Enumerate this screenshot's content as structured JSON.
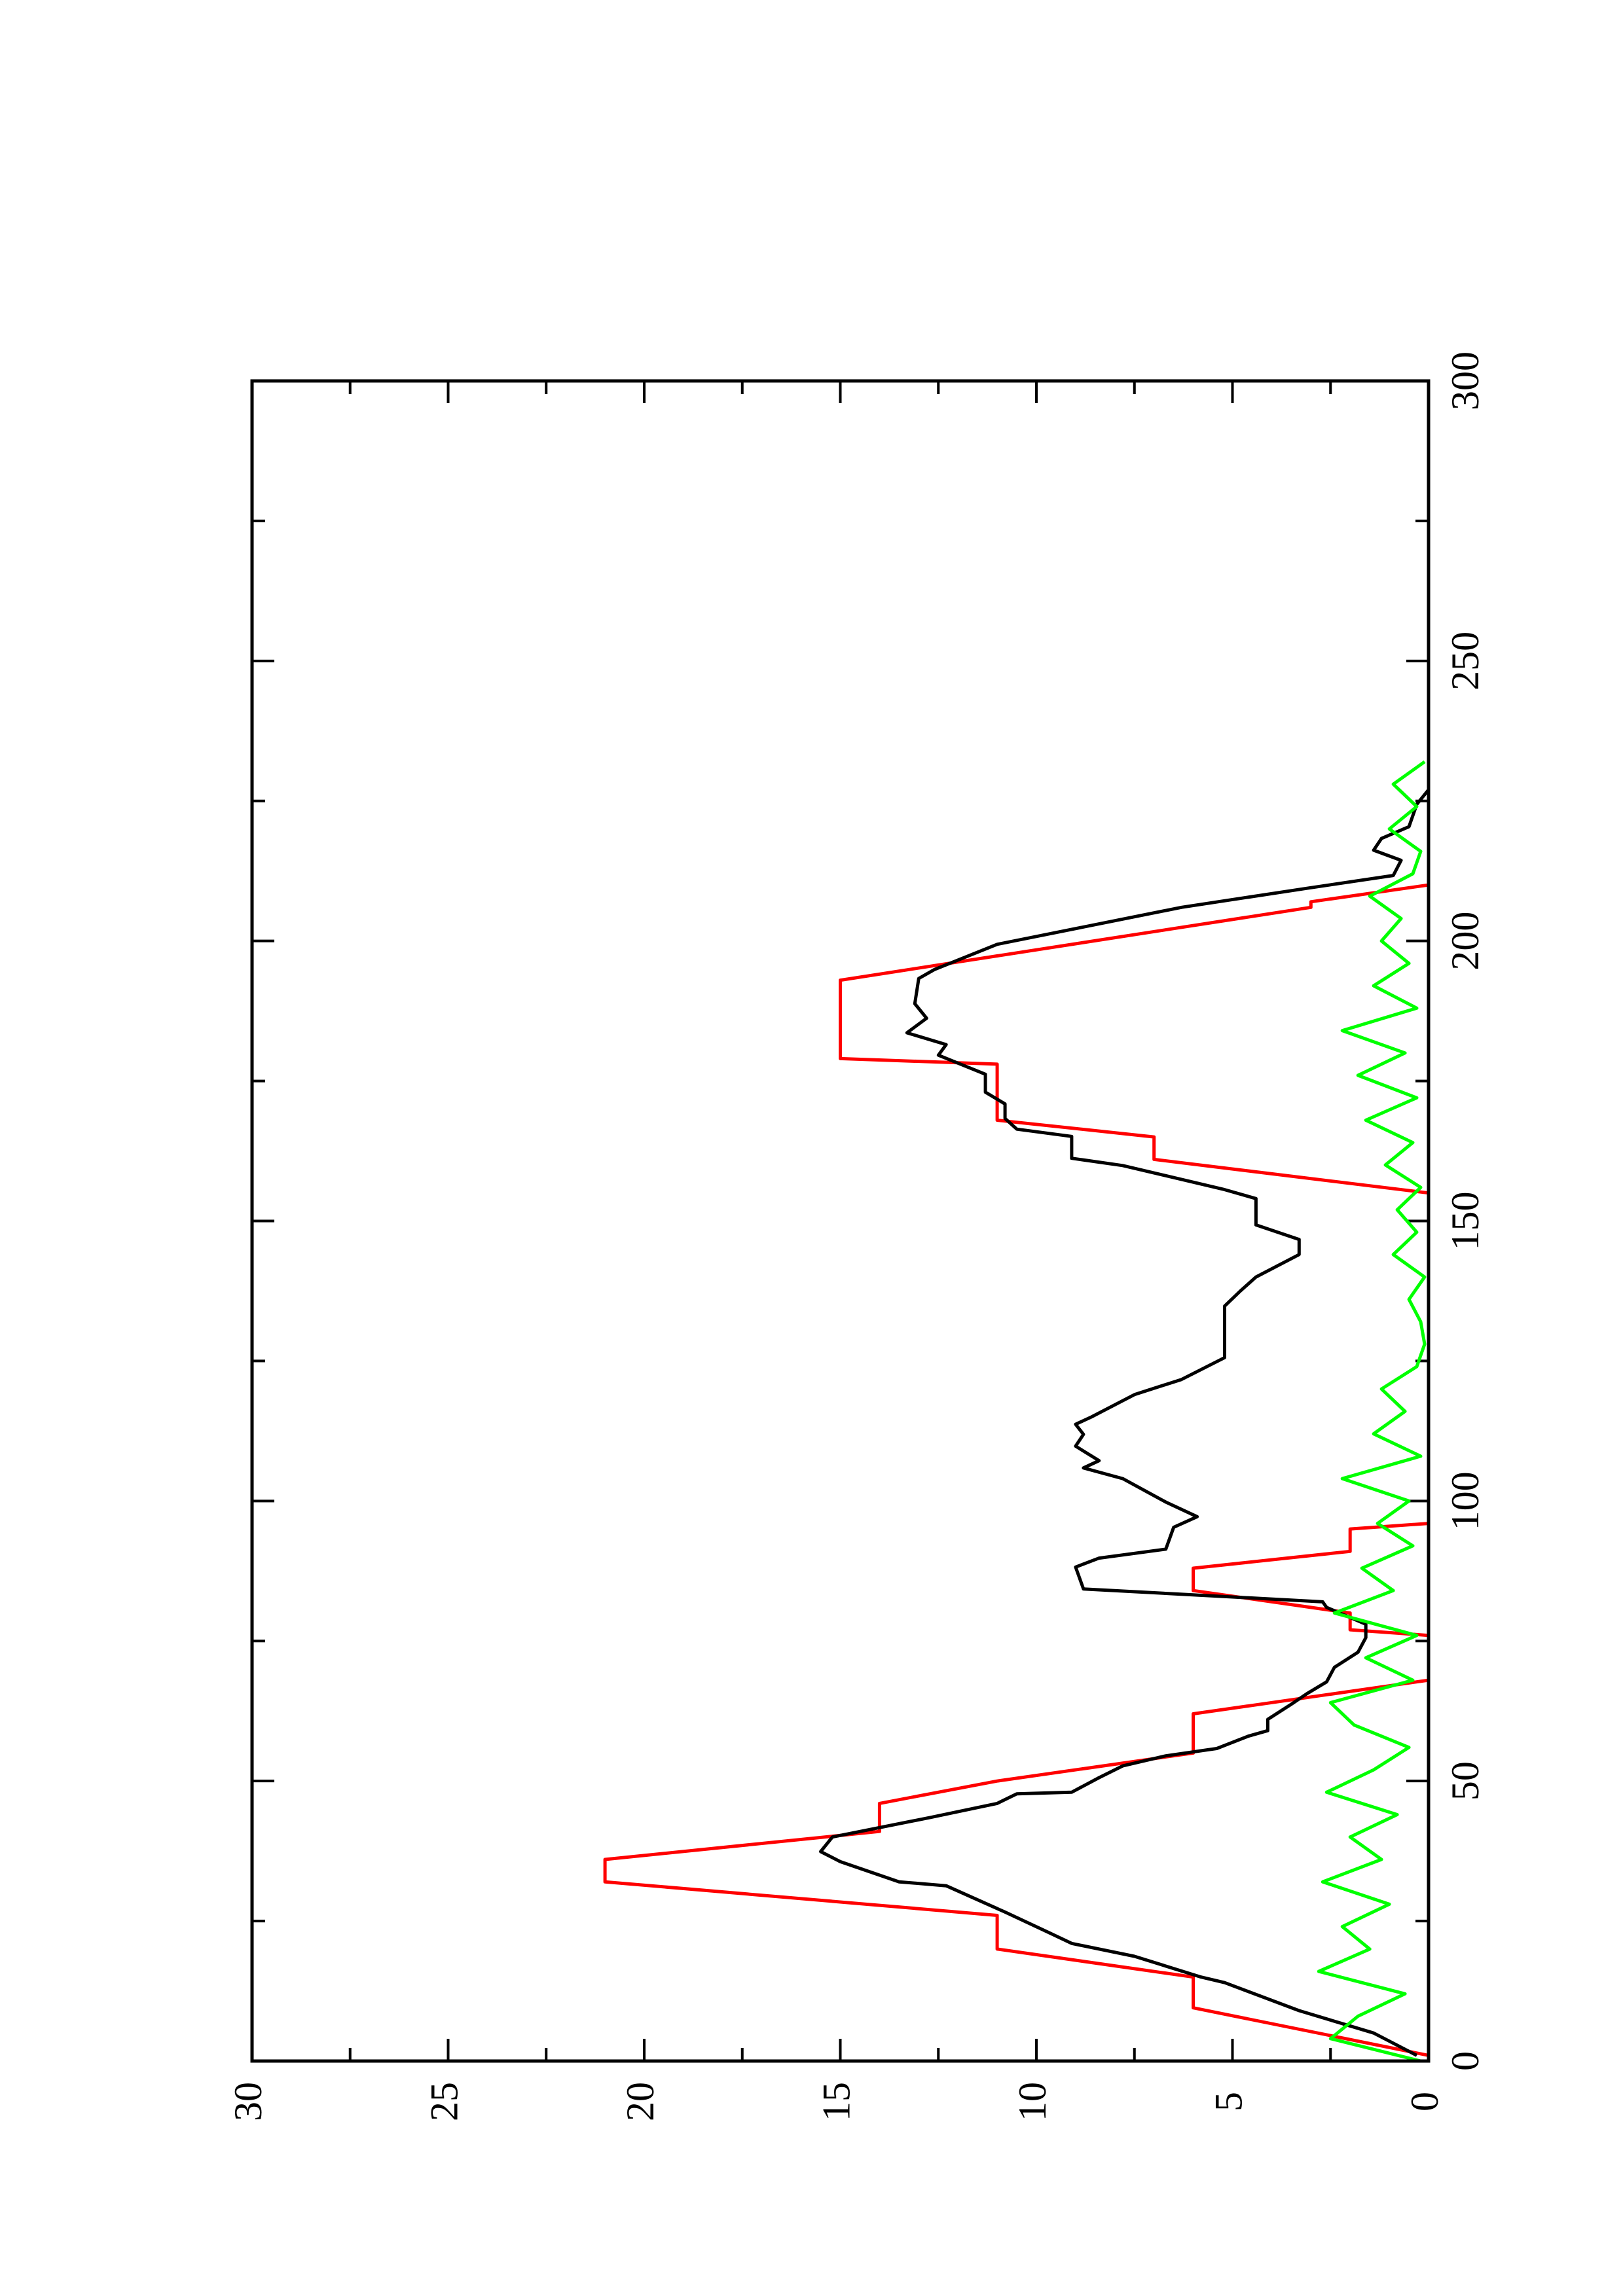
{
  "chart_data": {
    "type": "line",
    "orientation": "rotated",
    "xlim": [
      0,
      300
    ],
    "xticks": [
      0,
      50,
      100,
      150,
      200,
      250,
      300
    ],
    "xticks_minor": [
      25,
      75,
      125,
      175,
      225,
      275
    ],
    "ylim": [
      0,
      30
    ],
    "yticks": [
      0,
      5,
      10,
      15,
      20,
      25,
      30
    ],
    "yticks_minor": [
      2.5,
      7.5,
      12.5,
      17.5,
      22.5,
      27.5
    ],
    "grid": false,
    "series": [
      {
        "color": "#ff0000",
        "x": [
          1,
          9.5,
          15,
          20,
          26,
          32,
          36,
          41,
          46,
          50,
          55,
          62,
          68,
          76,
          77,
          80,
          84,
          88,
          91,
          95,
          96,
          155,
          161,
          165,
          168,
          178,
          179,
          193,
          206,
          207,
          210
        ],
        "values": [
          0,
          6,
          6,
          11,
          11,
          21,
          21,
          14,
          14,
          11,
          6,
          6,
          0,
          0,
          2,
          2,
          6,
          6,
          2,
          2,
          0,
          0,
          7,
          7,
          11,
          11,
          15,
          15,
          3,
          3,
          0
        ]
      },
      {
        "color": "#000000",
        "x": [
          1,
          5,
          9,
          14,
          15,
          18.7,
          21,
          23,
          26.6,
          31.3,
          32,
          35.6,
          37.4,
          40,
          43.5,
          46,
          47.7,
          48,
          50.6,
          52.7,
          54.5,
          55.8,
          58,
          59,
          61,
          63.7,
          65.6,
          67.7,
          70.3,
          73,
          75.6,
          78,
          81,
          82,
          84.3,
          88.2,
          89.8,
          91.4,
          95.3,
          97.2,
          99.8,
          104,
          105.9,
          107.2,
          109.8,
          111.9,
          113.7,
          115,
          119,
          121.7,
          125.6,
          134.8,
          137.5,
          140,
          144,
          146.7,
          149.3,
          154,
          155.6,
          159.9,
          161.2,
          165.1,
          166.4,
          168.3,
          170.9,
          173,
          176.2,
          179.6,
          181.5,
          183.6,
          186.2,
          188.8,
          193.3,
          194.9,
          199.4,
          206,
          209.4,
          211.7,
          214.4,
          216.2,
          218.3,
          220.4,
          224.4,
          227
        ],
        "values": [
          0.3,
          1.4,
          3.3,
          5.2,
          5.8,
          7.5,
          9.1,
          9.7,
          10.8,
          12.3,
          13.5,
          15,
          15.5,
          15.2,
          12.7,
          11,
          10.5,
          9.1,
          8.4,
          7.8,
          6.7,
          5.4,
          4.6,
          4.1,
          4.1,
          3.5,
          3.1,
          2.6,
          2.4,
          1.8,
          1.6,
          1.6,
          2.6,
          2.7,
          8.8,
          9,
          8.4,
          6.7,
          6.5,
          5.9,
          6.7,
          7.8,
          8.8,
          8.4,
          9,
          8.8,
          9,
          8.6,
          7.5,
          6.3,
          5.2,
          5.2,
          4.8,
          4.4,
          3.3,
          3.3,
          4.4,
          4.4,
          5.2,
          7.8,
          9.1,
          9.1,
          10.5,
          10.8,
          10.8,
          11.3,
          11.3,
          12.5,
          12.3,
          13.3,
          12.8,
          13.1,
          13,
          12.6,
          11,
          6.3,
          3.1,
          0.9,
          0.7,
          1.4,
          1.2,
          0.5,
          0.3,
          0
        ]
      },
      {
        "color": "#00ff00",
        "x": [
          0,
          4,
          8,
          12,
          16,
          20,
          24,
          28,
          32,
          36,
          40,
          44,
          48,
          52,
          56,
          60,
          64,
          68,
          72,
          76,
          80,
          84,
          88,
          92,
          96,
          100,
          104,
          108,
          112,
          116,
          120,
          124,
          128,
          132,
          136,
          140,
          144,
          148,
          152,
          156,
          160,
          164,
          168,
          172,
          176,
          180,
          184,
          188,
          192,
          196,
          200,
          204,
          208,
          212,
          216,
          220,
          224,
          228,
          232
        ],
        "values": [
          0.2,
          2.5,
          1.8,
          0.6,
          2.8,
          1.5,
          2.2,
          1.0,
          2.7,
          1.2,
          2.0,
          0.8,
          2.6,
          1.4,
          0.5,
          1.9,
          2.5,
          0.4,
          1.6,
          0.3,
          2.4,
          0.9,
          1.7,
          0.4,
          1.3,
          0.5,
          2.2,
          0.2,
          1.4,
          0.6,
          1.2,
          0.3,
          0.1,
          0.2,
          0.5,
          0.1,
          0.9,
          0.3,
          0.8,
          0.2,
          1.1,
          0.4,
          1.6,
          0.3,
          1.8,
          0.6,
          2.2,
          0.3,
          1.4,
          0.5,
          1.2,
          0.7,
          1.5,
          0.4,
          0.2,
          1.0,
          0.3,
          0.9,
          0.1
        ]
      }
    ]
  }
}
